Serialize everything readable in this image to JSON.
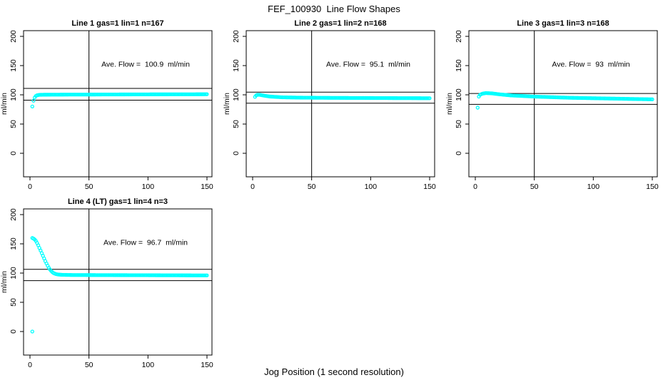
{
  "figure": {
    "title": "FEF_100930  Line Flow Shapes",
    "xlabel": "Jog Position (1 second resolution)",
    "background": "#ffffff",
    "point_color": "#00ffff",
    "axis_color": "#000000",
    "marker": "open-circle"
  },
  "chart_data": [
    {
      "type": "scatter",
      "title": "Line 1 gas=1 lin=1 n=167",
      "ave_flow": 100.9,
      "ave_flow_label": "Ave. Flow =  100.9  ml/min",
      "ylabel": "ml/min",
      "xlim": [
        0,
        155
      ],
      "ylim": [
        0,
        210
      ],
      "xticks": [
        0,
        50,
        100,
        150
      ],
      "yticks": [
        0,
        50,
        100,
        150,
        200
      ],
      "vline_x": 50,
      "hlines": [
        111.0,
        90.8
      ],
      "annotation_pos": [
        98,
        148
      ],
      "outliers": [
        [
          2,
          80
        ]
      ],
      "x_step": 1,
      "series": [
        {
          "name": "flow",
          "keypoints": [
            [
              3,
              90
            ],
            [
              4,
              95.5
            ],
            [
              5,
              98
            ],
            [
              6,
              99.2
            ],
            [
              8,
              100
            ],
            [
              12,
              100.2
            ],
            [
              30,
              100.4
            ],
            [
              50,
              100.5
            ],
            [
              100,
              100.8
            ],
            [
              150,
              101
            ]
          ]
        }
      ]
    },
    {
      "type": "scatter",
      "title": "Line 2 gas=1 lin=2 n=168",
      "ave_flow": 95.1,
      "ave_flow_label": "Ave. Flow =  95.1  ml/min",
      "ylabel": "ml/min",
      "xlim": [
        0,
        155
      ],
      "ylim": [
        0,
        210
      ],
      "xticks": [
        0,
        50,
        100,
        150
      ],
      "yticks": [
        0,
        50,
        100,
        150,
        200
      ],
      "vline_x": 50,
      "hlines": [
        104.6,
        85.6
      ],
      "annotation_pos": [
        98,
        148
      ],
      "outliers": [],
      "x_step": 1,
      "series": [
        {
          "name": "flow",
          "keypoints": [
            [
              2,
              96.5
            ],
            [
              3,
              99
            ],
            [
              4,
              100
            ],
            [
              6,
              100
            ],
            [
              10,
              98.5
            ],
            [
              15,
              97
            ],
            [
              25,
              95.8
            ],
            [
              40,
              95.2
            ],
            [
              70,
              94.8
            ],
            [
              110,
              94.5
            ],
            [
              150,
              94.2
            ]
          ]
        }
      ]
    },
    {
      "type": "scatter",
      "title": "Line 3 gas=1 lin=3 n=168",
      "ave_flow": 93,
      "ave_flow_label": "Ave. Flow =  93  ml/min",
      "ylabel": "ml/min",
      "xlim": [
        0,
        155
      ],
      "ylim": [
        0,
        210
      ],
      "xticks": [
        0,
        50,
        100,
        150
      ],
      "yticks": [
        0,
        50,
        100,
        150,
        200
      ],
      "vline_x": 50,
      "hlines": [
        102.3,
        83.7
      ],
      "annotation_pos": [
        98,
        148
      ],
      "outliers": [
        [
          2,
          78
        ]
      ],
      "x_step": 1,
      "series": [
        {
          "name": "flow",
          "keypoints": [
            [
              3,
              97
            ],
            [
              4,
              100
            ],
            [
              6,
              102
            ],
            [
              9,
              103
            ],
            [
              14,
              102.5
            ],
            [
              20,
              101
            ],
            [
              30,
              99
            ],
            [
              50,
              97
            ],
            [
              80,
              95
            ],
            [
              110,
              93.8
            ],
            [
              150,
              92.3
            ]
          ]
        }
      ]
    },
    {
      "type": "scatter",
      "title": "Line 4 (LT) gas=1 lin=4 n=3",
      "ave_flow": 96.7,
      "ave_flow_label": "Ave. Flow =  96.7  ml/min",
      "ylabel": "ml/min",
      "xlim": [
        0,
        155
      ],
      "ylim": [
        0,
        210
      ],
      "xticks": [
        0,
        50,
        100,
        150
      ],
      "yticks": [
        0,
        50,
        100,
        150,
        200
      ],
      "vline_x": 50,
      "hlines": [
        106.4,
        87.0
      ],
      "annotation_pos": [
        98,
        148
      ],
      "outliers": [
        [
          2,
          0
        ]
      ],
      "x_step": 1,
      "series": [
        {
          "name": "flow",
          "keypoints": [
            [
              2,
              160
            ],
            [
              3,
              159
            ],
            [
              4,
              157.5
            ],
            [
              5,
              155
            ],
            [
              6,
              151.5
            ],
            [
              7,
              147.5
            ],
            [
              8,
              143
            ],
            [
              9,
              138.5
            ],
            [
              10,
              134
            ],
            [
              11,
              129.5
            ],
            [
              12,
              125
            ],
            [
              13,
              120.5
            ],
            [
              14,
              116.5
            ],
            [
              15,
              112.5
            ],
            [
              16,
              109
            ],
            [
              17,
              106
            ],
            [
              18,
              103.5
            ],
            [
              19,
              101.5
            ],
            [
              20,
              100
            ],
            [
              22,
              98.3
            ],
            [
              24,
              97.5
            ],
            [
              27,
              97
            ],
            [
              35,
              96.7
            ],
            [
              60,
              96.5
            ],
            [
              100,
              96.3
            ],
            [
              150,
              96
            ]
          ]
        }
      ]
    }
  ]
}
